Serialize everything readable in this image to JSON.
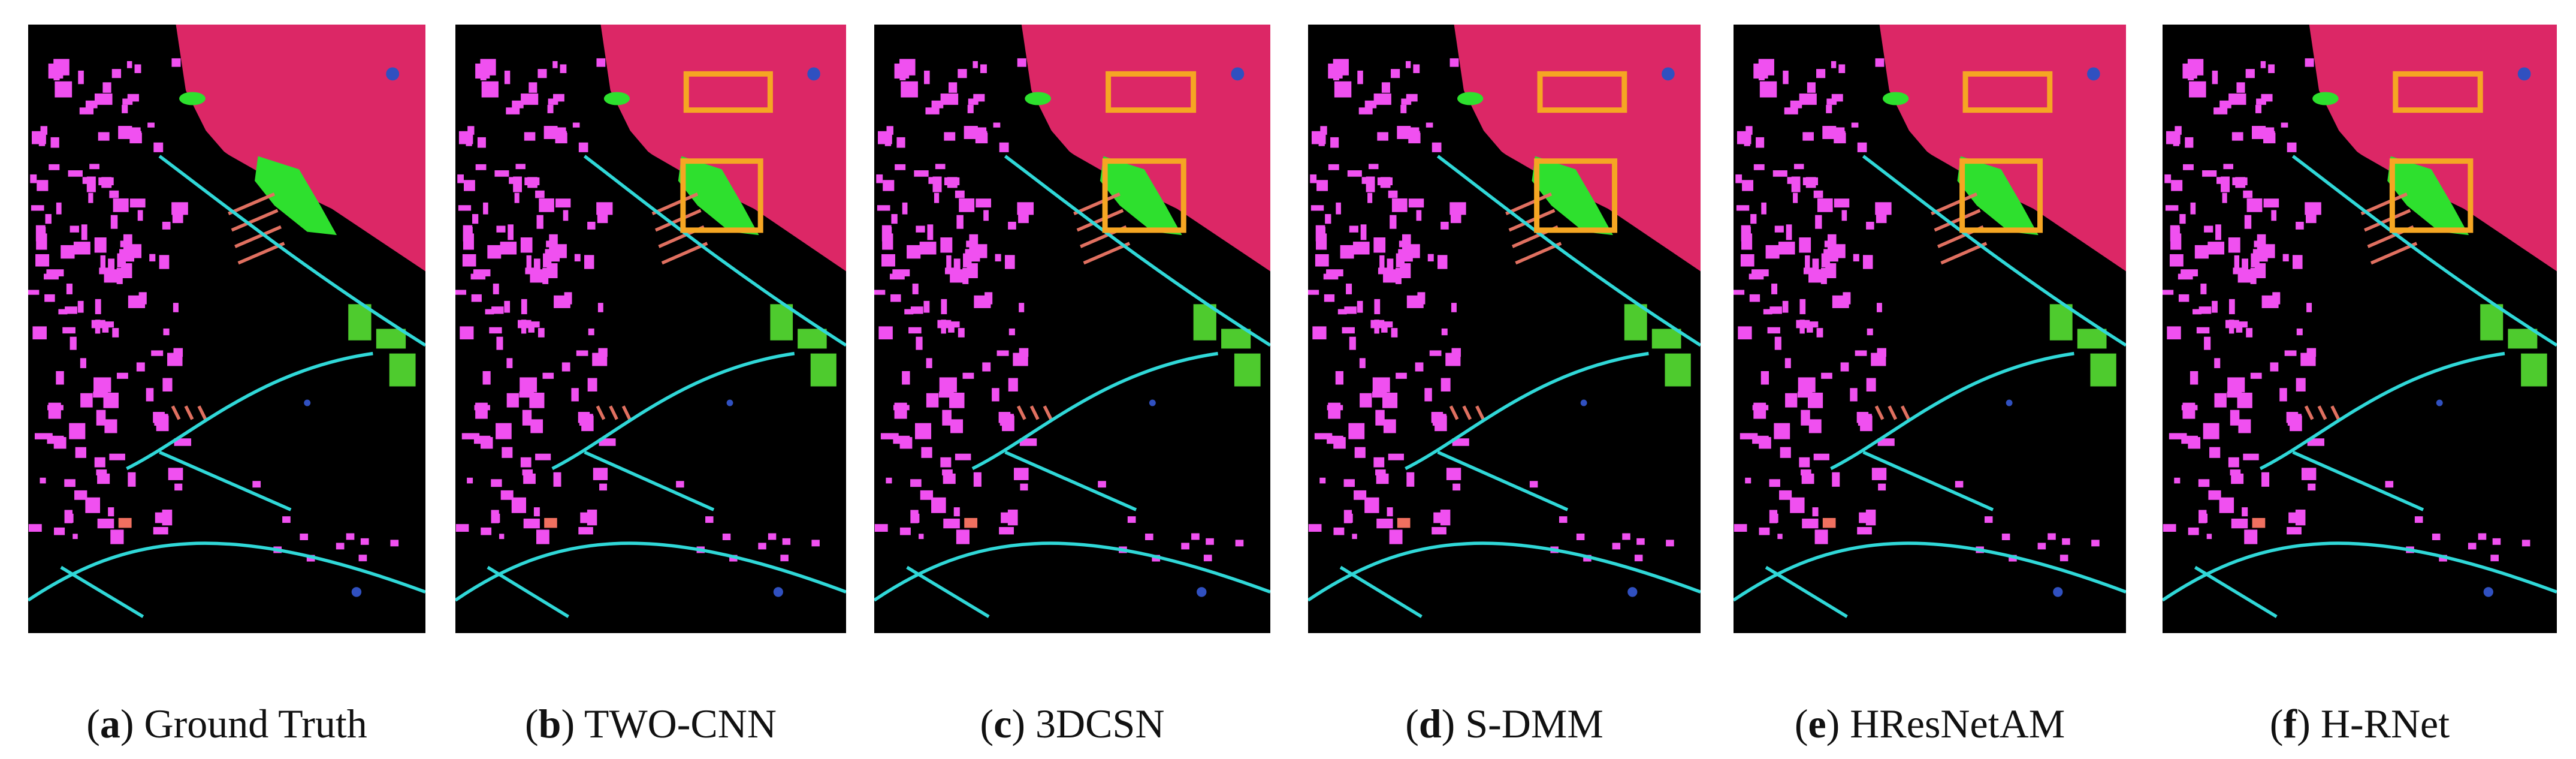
{
  "panels": [
    {
      "caption": [
        "(",
        "a",
        ") Ground Truth"
      ]
    },
    {
      "caption": [
        "(",
        "b",
        ") TWO-CNN"
      ]
    },
    {
      "caption": [
        "(",
        "c",
        ") 3DCSN"
      ]
    },
    {
      "caption": [
        "(",
        "d",
        ") S-DMM"
      ]
    },
    {
      "caption": [
        "(",
        "e",
        ") HResNetAM"
      ]
    },
    {
      "caption": [
        "(",
        "f",
        ") H-RNet"
      ]
    }
  ]
}
